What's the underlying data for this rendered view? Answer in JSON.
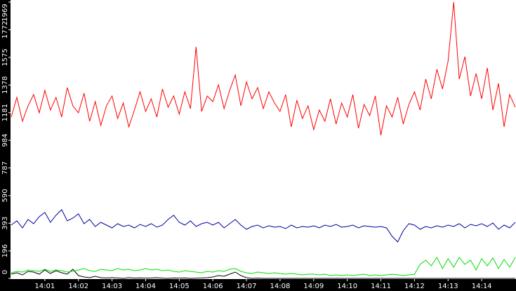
{
  "chart_data": {
    "type": "line",
    "categories": [
      null,
      null,
      null,
      null,
      null,
      null,
      "14:01",
      null,
      null,
      null,
      null,
      null,
      "14:02",
      null,
      null,
      null,
      null,
      null,
      "14:03",
      null,
      null,
      null,
      null,
      null,
      "14:04",
      null,
      null,
      null,
      null,
      null,
      "14:05",
      null,
      null,
      null,
      null,
      null,
      "14:06",
      null,
      null,
      null,
      null,
      null,
      "14:07",
      null,
      null,
      null,
      null,
      null,
      "14:08",
      null,
      null,
      null,
      null,
      null,
      "14:09",
      null,
      null,
      null,
      null,
      null,
      "14:10",
      null,
      null,
      null,
      null,
      null,
      "14:11",
      null,
      null,
      null,
      null,
      null,
      "14:12",
      null,
      null,
      null,
      null,
      null,
      "14:13",
      null,
      null,
      null,
      null,
      null,
      "14:14",
      null,
      null,
      null,
      null,
      null,
      null
    ],
    "ylim": [
      0,
      1969
    ],
    "yticks": [
      0,
      196,
      393,
      590,
      787,
      984,
      1181,
      1378,
      1575,
      1772,
      1969
    ],
    "series": [
      {
        "color": "#ff0000",
        "values": [
          1150,
          1290,
          1120,
          1230,
          1310,
          1180,
          1340,
          1200,
          1290,
          1150,
          1360,
          1230,
          1180,
          1320,
          1120,
          1260,
          1090,
          1230,
          1300,
          1140,
          1250,
          1080,
          1200,
          1330,
          1190,
          1280,
          1150,
          1350,
          1220,
          1300,
          1170,
          1330,
          1210,
          1650,
          1190,
          1300,
          1260,
          1380,
          1210,
          1340,
          1450,
          1230,
          1400,
          1280,
          1360,
          1210,
          1330,
          1250,
          1190,
          1310,
          1080,
          1270,
          1140,
          1230,
          1060,
          1200,
          1120,
          1280,
          1100,
          1250,
          1150,
          1310,
          1070,
          1240,
          1160,
          1300,
          1020,
          1230,
          1150,
          1290,
          1100,
          1240,
          1330,
          1200,
          1420,
          1280,
          1490,
          1350,
          1550,
          1969,
          1420,
          1580,
          1300,
          1460,
          1280,
          1500,
          1200,
          1390,
          1080,
          1310,
          1220
        ]
      },
      {
        "color": "#0000a0",
        "values": [
          380,
          410,
          360,
          420,
          390,
          440,
          470,
          400,
          450,
          490,
          410,
          430,
          460,
          390,
          420,
          370,
          400,
          380,
          360,
          390,
          370,
          380,
          360,
          385,
          370,
          390,
          365,
          380,
          420,
          450,
          400,
          380,
          410,
          370,
          390,
          400,
          380,
          400,
          360,
          390,
          420,
          380,
          350,
          370,
          380,
          360,
          375,
          365,
          370,
          355,
          380,
          360,
          370,
          365,
          375,
          360,
          380,
          370,
          385,
          365,
          370,
          380,
          360,
          375,
          370,
          365,
          370,
          360,
          300,
          260,
          340,
          390,
          380,
          350,
          370,
          360,
          375,
          365,
          380,
          370,
          390,
          360,
          385,
          375,
          390,
          370,
          395,
          350,
          380,
          360,
          400
        ]
      },
      {
        "color": "#00e000",
        "values": [
          40,
          50,
          45,
          60,
          55,
          50,
          65,
          50,
          60,
          55,
          45,
          50,
          60,
          70,
          55,
          50,
          65,
          60,
          55,
          70,
          60,
          65,
          55,
          60,
          70,
          60,
          65,
          55,
          60,
          50,
          45,
          55,
          50,
          45,
          40,
          50,
          45,
          55,
          50,
          65,
          70,
          50,
          40,
          35,
          45,
          40,
          35,
          40,
          35,
          30,
          35,
          30,
          25,
          30,
          30,
          25,
          30,
          20,
          25,
          20,
          25,
          20,
          25,
          30,
          20,
          25,
          20,
          25,
          30,
          25,
          20,
          25,
          30,
          100,
          130,
          90,
          150,
          70,
          140,
          80,
          150,
          100,
          130,
          60,
          140,
          90,
          145,
          70,
          135,
          80,
          150
        ]
      },
      {
        "color": "#000000",
        "values": [
          30,
          40,
          25,
          50,
          45,
          30,
          60,
          35,
          55,
          40,
          30,
          65,
          20,
          10,
          5,
          15,
          5,
          3,
          5,
          3,
          0,
          5,
          2,
          3,
          2,
          3,
          5,
          2,
          0,
          3,
          2,
          3,
          0,
          2,
          3,
          5,
          10,
          20,
          15,
          30,
          45,
          20,
          5,
          0,
          2,
          0,
          0,
          0,
          0,
          0,
          0,
          0,
          0,
          0,
          0,
          0,
          0,
          0,
          0,
          0,
          0,
          0,
          0,
          0,
          0,
          0,
          0,
          0,
          0,
          0,
          0,
          0,
          0,
          0,
          0,
          0,
          0,
          0,
          0,
          0,
          0,
          0,
          0,
          0,
          0,
          0,
          0,
          0,
          0,
          0,
          0
        ]
      }
    ]
  }
}
